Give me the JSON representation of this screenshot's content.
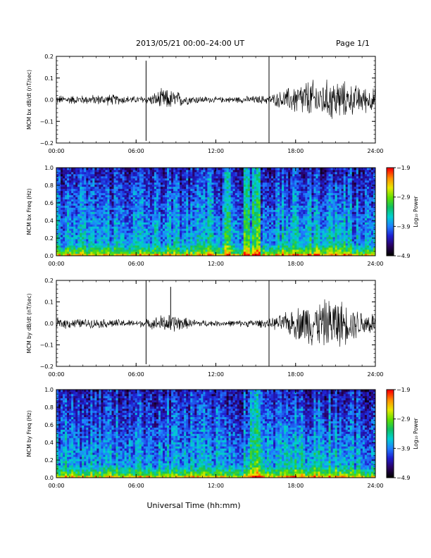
{
  "header": {
    "title": "2013/05/21  00:00–24:00 UT",
    "page": "Page 1/1"
  },
  "xlabel": "Universal Time (hh:mm)",
  "x_ticks": [
    "00:00",
    "06:00",
    "12:00",
    "18:00",
    "24:00"
  ],
  "colorbar": {
    "ticks": [
      "−1.9",
      "−2.9",
      "−3.9",
      "−4.9"
    ],
    "tick_values": [
      -1.9,
      -2.9,
      -3.9,
      -4.9
    ],
    "label": "Log₁₀ Power",
    "colors": [
      "#000000",
      "#2a0060",
      "#1f1fd0",
      "#1f7fff",
      "#00d0d0",
      "#10c060",
      "#60e000",
      "#e8e800",
      "#ff9000",
      "#ff0000"
    ]
  },
  "chart_data": [
    {
      "type": "line",
      "id": "bx_time_series",
      "ylabel": "MCM bx dB/dt (nT/sec)",
      "xlim": [
        0,
        24
      ],
      "ylim": [
        -0.2,
        0.2
      ],
      "y_ticks": [
        0.2,
        0.1,
        0.0,
        -0.1,
        -0.2
      ],
      "y_tick_labels": [
        "0.2",
        "0.1",
        "0.0",
        "−0.1",
        "−0.2"
      ],
      "series": [
        {
          "x": [
            0,
            2,
            4,
            6,
            7,
            8,
            9,
            10,
            12,
            14,
            16,
            17,
            18,
            19,
            20,
            21,
            22,
            23,
            24
          ],
          "amplitude": [
            0.02,
            0.02,
            0.025,
            0.015,
            0.02,
            0.05,
            0.04,
            0.02,
            0.012,
            0.015,
            0.02,
            0.04,
            0.07,
            0.09,
            0.08,
            0.1,
            0.07,
            0.06,
            0.05
          ]
        }
      ],
      "spikes": [
        {
          "x": 6.75,
          "y_max": 0.18,
          "y_min": -0.19
        },
        {
          "x": 16.0,
          "y_max": 0.2,
          "y_min": -0.2
        }
      ]
    },
    {
      "type": "heatmap",
      "id": "bx_spectrogram",
      "ylabel": "MCM bx Freq (Hz)",
      "xlim": [
        0,
        24
      ],
      "ylim": [
        0,
        1.0
      ],
      "y_ticks": [
        1.0,
        0.8,
        0.6,
        0.4,
        0.2,
        0.0
      ],
      "y_tick_labels": [
        "1.0",
        "0.8",
        "0.6",
        "0.4",
        "0.2",
        "0.0"
      ],
      "colorbar_range": [
        -4.9,
        -1.9
      ],
      "bright_bands_hours": [
        11.5,
        12.9,
        14.3,
        14.9,
        15.2
      ]
    },
    {
      "type": "line",
      "id": "by_time_series",
      "ylabel": "MCM by dB/dt (nT/sec)",
      "xlim": [
        0,
        24
      ],
      "ylim": [
        -0.2,
        0.2
      ],
      "y_ticks": [
        0.2,
        0.1,
        0.0,
        -0.1,
        -0.2
      ],
      "y_tick_labels": [
        "0.2",
        "0.1",
        "0.0",
        "−0.1",
        "−0.2"
      ],
      "series": [
        {
          "x": [
            0,
            2,
            4,
            6,
            7,
            8,
            9,
            10,
            12,
            14,
            16,
            17,
            18,
            19,
            20,
            21,
            22,
            23,
            24
          ],
          "amplitude": [
            0.025,
            0.02,
            0.02,
            0.015,
            0.02,
            0.04,
            0.04,
            0.02,
            0.012,
            0.015,
            0.02,
            0.04,
            0.07,
            0.1,
            0.1,
            0.12,
            0.08,
            0.06,
            0.05
          ]
        }
      ],
      "spikes": [
        {
          "x": 6.75,
          "y_max": 0.2,
          "y_min": -0.19
        },
        {
          "x": 8.6,
          "y_max": 0.17,
          "y_min": -0.03
        },
        {
          "x": 16.0,
          "y_max": 0.2,
          "y_min": -0.2
        }
      ]
    },
    {
      "type": "heatmap",
      "id": "by_spectrogram",
      "ylabel": "MCM by Freq (Hz)",
      "xlim": [
        0,
        24
      ],
      "ylim": [
        0,
        1.0
      ],
      "y_ticks": [
        1.0,
        0.8,
        0.6,
        0.4,
        0.2,
        0.0
      ],
      "y_tick_labels": [
        "1.0",
        "0.8",
        "0.6",
        "0.4",
        "0.2",
        "0.0"
      ],
      "colorbar_range": [
        -4.9,
        -1.9
      ],
      "bright_bands_hours": [
        14.8,
        15.1
      ]
    }
  ]
}
